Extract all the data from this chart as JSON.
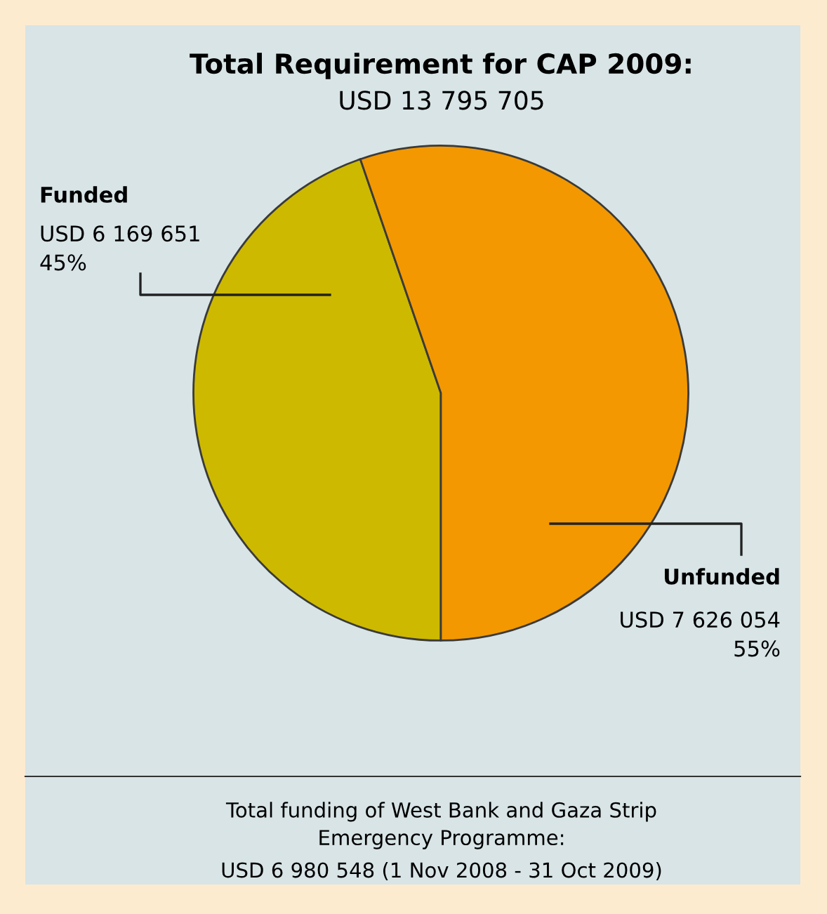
{
  "chart_data": {
    "type": "pie",
    "title": "Total Requirement for CAP 2009:",
    "subtitle": "USD 13 795 705",
    "categories": [
      "Funded",
      "Unfunded"
    ],
    "values": [
      6169651,
      7626054
    ],
    "colors": [
      "#cdb900",
      "#f39800"
    ],
    "value_labels": [
      "USD 6 169 651\n45%",
      "USD 7 626 054\n55%"
    ],
    "annotations": [
      "Total funding of West Bank and Gaza Strip\nEmergency Programme:",
      "USD 6 980 548 (1 Nov 2008 - 31 Oct 2009)"
    ]
  }
}
